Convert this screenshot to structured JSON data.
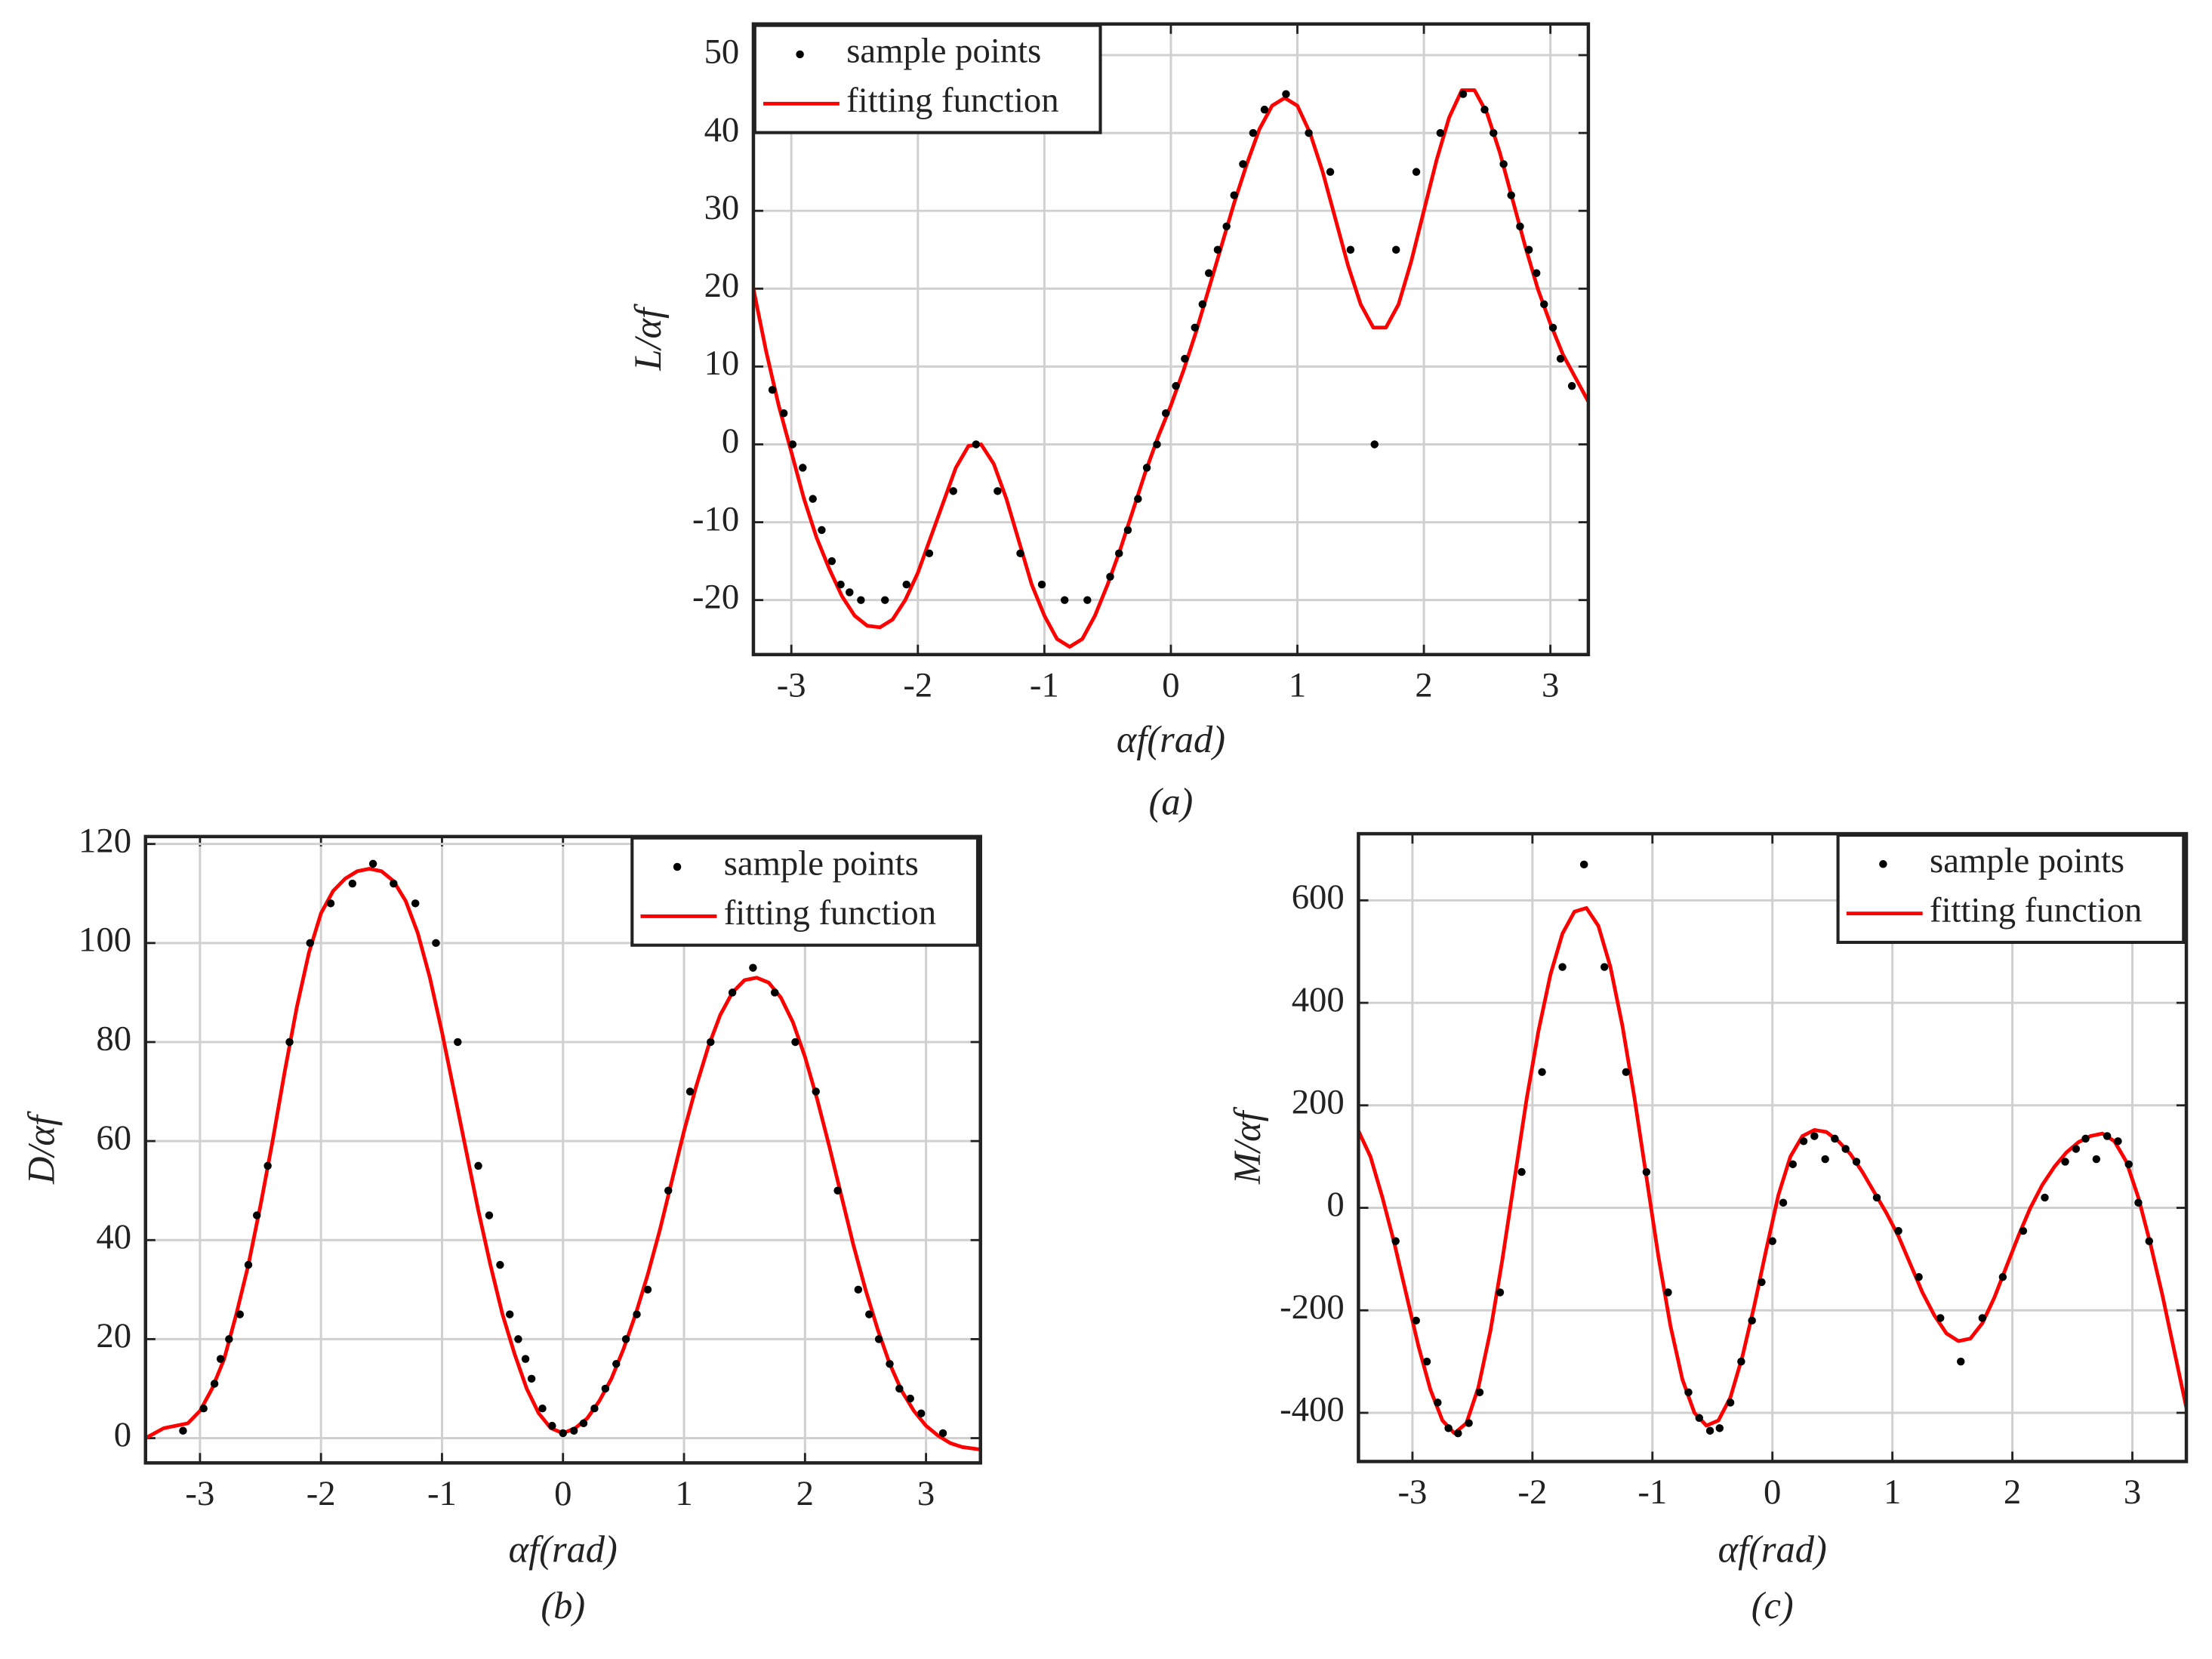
{
  "chart_data": [
    {
      "type": "line",
      "ylabel": "L/αf",
      "xlabel": "αf(rad)",
      "caption": "(a)",
      "legend": "upper left",
      "grid": true,
      "xlim": [
        -3.3,
        3.3
      ],
      "ylim": [
        -27,
        54
      ],
      "xticks": [
        -3,
        -2,
        -1,
        0,
        1,
        2,
        3
      ],
      "yticks": [
        -20,
        -10,
        0,
        10,
        20,
        30,
        40,
        50
      ],
      "series": [
        {
          "name": "sample points",
          "style": "markers",
          "color": "#000000",
          "x": [
            -3.15,
            -3.06,
            -2.99,
            -2.91,
            -2.83,
            -2.76,
            -2.68,
            -2.61,
            -2.54,
            -2.45,
            -2.26,
            -2.09,
            -1.91,
            -1.72,
            -1.54,
            -1.37,
            -1.19,
            -1.02,
            -0.84,
            -0.66,
            -0.48,
            -0.41,
            -0.34,
            -0.26,
            -0.19,
            -0.11,
            -0.04,
            0.04,
            0.11,
            0.19,
            0.25,
            0.3,
            0.37,
            0.44,
            0.5,
            0.57,
            0.65,
            0.74,
            0.91,
            1.09,
            1.26,
            1.42,
            1.61,
            1.78,
            1.94,
            2.13,
            2.31,
            2.48,
            2.55,
            2.63,
            2.69,
            2.76,
            2.83,
            2.89,
            2.95,
            3.02,
            3.08,
            3.17
          ],
          "values": [
            7,
            4,
            0,
            -3,
            -7,
            -11,
            -15,
            -18,
            -19,
            -20,
            -20,
            -18,
            -14,
            -6,
            0,
            -6,
            -14,
            -18,
            -20,
            -20,
            -17,
            -14,
            -11,
            -7,
            -3,
            0,
            4,
            7.5,
            11,
            15,
            18,
            22,
            25,
            28,
            32,
            36,
            40,
            43,
            45,
            40,
            35,
            25,
            0,
            25,
            35,
            40,
            45,
            43,
            40,
            36,
            32,
            28,
            25,
            22,
            18,
            15,
            11,
            7.5
          ]
        },
        {
          "name": "fitting function",
          "style": "line",
          "color": "#ff0000",
          "x": [
            -3.3,
            -3.2,
            -3.1,
            -3,
            -2.9,
            -2.8,
            -2.7,
            -2.6,
            -2.5,
            -2.4,
            -2.3,
            -2.2,
            -2.1,
            -2,
            -1.9,
            -1.8,
            -1.7,
            -1.6,
            -1.5,
            -1.4,
            -1.3,
            -1.2,
            -1.1,
            -1,
            -0.9,
            -0.8,
            -0.7,
            -0.6,
            -0.5,
            -0.4,
            -0.3,
            -0.2,
            -0.1,
            0,
            0.1,
            0.2,
            0.3,
            0.4,
            0.5,
            0.6,
            0.7,
            0.8,
            0.9,
            1,
            1.1,
            1.2,
            1.3,
            1.4,
            1.5,
            1.6,
            1.7,
            1.8,
            1.9,
            2,
            2.1,
            2.2,
            2.3,
            2.4,
            2.5,
            2.6,
            2.7,
            2.8,
            2.9,
            3,
            3.1,
            3.2,
            3.3
          ],
          "values": [
            20,
            12,
            5,
            -1,
            -7,
            -12,
            -16,
            -19.5,
            -22,
            -23.3,
            -23.5,
            -22.5,
            -20,
            -16.5,
            -12,
            -7.5,
            -3,
            -0.2,
            0,
            -2.5,
            -7,
            -12.5,
            -18,
            -22,
            -25,
            -26,
            -25,
            -22,
            -18,
            -13.5,
            -8.5,
            -3.5,
            1,
            5,
            9.5,
            14.5,
            20,
            25.5,
            31,
            36,
            40.5,
            43.5,
            44.5,
            43.5,
            40,
            35,
            29,
            23,
            18,
            15,
            15,
            18,
            23.5,
            30,
            36.5,
            42,
            45.5,
            45.5,
            42.5,
            37.5,
            31.5,
            25.5,
            20,
            15.5,
            11.5,
            8.5,
            5.5
          ]
        }
      ]
    },
    {
      "type": "line",
      "ylabel": "D/αf",
      "xlabel": "αf(rad)",
      "caption": "(b)",
      "legend": "upper right",
      "grid": true,
      "xlim": [
        -3.45,
        3.45
      ],
      "ylim": [
        -5,
        121.5
      ],
      "xticks": [
        -3,
        -2,
        -1,
        0,
        1,
        2,
        3
      ],
      "yticks": [
        0,
        20,
        40,
        60,
        80,
        100,
        120
      ],
      "series": [
        {
          "name": "sample points",
          "style": "markers",
          "color": "#000000",
          "x": [
            -3.14,
            -2.97,
            -2.88,
            -2.83,
            -2.76,
            -2.67,
            -2.6,
            -2.53,
            -2.44,
            -2.26,
            -2.09,
            -1.92,
            -1.74,
            -1.57,
            -1.4,
            -1.22,
            -1.05,
            -0.87,
            -0.7,
            -0.61,
            -0.52,
            -0.44,
            -0.37,
            -0.31,
            -0.26,
            -0.17,
            -0.09,
            0,
            0.09,
            0.17,
            0.26,
            0.35,
            0.44,
            0.52,
            0.61,
            0.7,
            0.87,
            1.05,
            1.22,
            1.4,
            1.57,
            1.75,
            1.92,
            2.09,
            2.27,
            2.44,
            2.53,
            2.61,
            2.7,
            2.78,
            2.87,
            2.96,
            3.14
          ],
          "values": [
            1.5,
            6,
            11,
            16,
            20,
            25,
            35,
            45,
            55,
            80,
            100,
            108,
            112,
            116,
            112,
            108,
            100,
            80,
            55,
            45,
            35,
            25,
            20,
            16,
            12,
            6,
            2.5,
            1,
            1.5,
            3,
            6,
            10,
            15,
            20,
            25,
            30,
            50,
            70,
            80,
            90,
            95,
            90,
            80,
            70,
            50,
            30,
            25,
            20,
            15,
            10,
            8,
            5,
            1
          ]
        },
        {
          "name": "fitting function",
          "style": "line",
          "color": "#ff0000",
          "x": [
            -3.45,
            -3.3,
            -3.2,
            -3.1,
            -3,
            -2.9,
            -2.8,
            -2.7,
            -2.6,
            -2.5,
            -2.4,
            -2.3,
            -2.2,
            -2.1,
            -2,
            -1.9,
            -1.8,
            -1.7,
            -1.6,
            -1.5,
            -1.4,
            -1.3,
            -1.2,
            -1.1,
            -1,
            -0.9,
            -0.8,
            -0.7,
            -0.6,
            -0.5,
            -0.4,
            -0.3,
            -0.2,
            -0.1,
            0,
            0.1,
            0.2,
            0.3,
            0.4,
            0.5,
            0.6,
            0.7,
            0.8,
            0.9,
            1,
            1.1,
            1.2,
            1.3,
            1.4,
            1.5,
            1.6,
            1.7,
            1.8,
            1.9,
            2,
            2.1,
            2.2,
            2.3,
            2.4,
            2.5,
            2.6,
            2.7,
            2.8,
            2.9,
            3,
            3.1,
            3.2,
            3.3,
            3.45
          ],
          "values": [
            0,
            2,
            2.5,
            3,
            5.5,
            10,
            16,
            25,
            35,
            47,
            60,
            74,
            87,
            98,
            106,
            110.5,
            113,
            114.5,
            115,
            114.5,
            112.5,
            108.5,
            102,
            93,
            82,
            70,
            58,
            46,
            35,
            25,
            17,
            10,
            5,
            2,
            1,
            2,
            4,
            7.5,
            12,
            18,
            25,
            33,
            42,
            52,
            62,
            71,
            79,
            85.5,
            90,
            92.5,
            93,
            92,
            89,
            84,
            77,
            68.5,
            59,
            49,
            39,
            30,
            22,
            15,
            9.5,
            5.5,
            2.5,
            0.5,
            -1,
            -1.8,
            -2.3
          ]
        }
      ]
    },
    {
      "type": "line",
      "ylabel": "M/αf",
      "xlabel": "αf(rad)",
      "caption": "(c)",
      "legend": "upper right",
      "grid": true,
      "xlim": [
        -3.45,
        3.45
      ],
      "ylim": [
        -495,
        730
      ],
      "xticks": [
        -3,
        -2,
        -1,
        0,
        1,
        2,
        3
      ],
      "yticks": [
        -400,
        -200,
        0,
        200,
        400,
        600
      ],
      "series": [
        {
          "name": "sample points",
          "style": "markers",
          "color": "#000000",
          "x": [
            -3.14,
            -2.97,
            -2.88,
            -2.79,
            -2.7,
            -2.62,
            -2.53,
            -2.44,
            -2.27,
            -2.09,
            -1.92,
            -1.75,
            -1.57,
            -1.4,
            -1.22,
            -1.05,
            -0.87,
            -0.7,
            -0.61,
            -0.52,
            -0.44,
            -0.35,
            -0.26,
            -0.17,
            -0.09,
            0,
            0.09,
            0.17,
            0.26,
            0.35,
            0.44,
            0.52,
            0.61,
            0.7,
            0.87,
            1.05,
            1.22,
            1.4,
            1.57,
            1.75,
            1.92,
            2.09,
            2.27,
            2.44,
            2.53,
            2.61,
            2.7,
            2.79,
            2.88,
            2.97,
            3.05,
            3.14
          ],
          "values": [
            -65,
            -220,
            -300,
            -380,
            -430,
            -440,
            -420,
            -360,
            -165,
            70,
            265,
            470,
            670,
            470,
            265,
            70,
            -165,
            -360,
            -410,
            -435,
            -430,
            -380,
            -300,
            -220,
            -145,
            -65,
            10,
            85,
            130,
            140,
            95,
            135,
            115,
            90,
            20,
            -45,
            -135,
            -215,
            -300,
            -215,
            -135,
            -45,
            20,
            90,
            115,
            135,
            95,
            140,
            130,
            85,
            10,
            -65
          ]
        },
        {
          "name": "fitting function",
          "style": "line",
          "color": "#ff0000",
          "x": [
            -3.45,
            -3.35,
            -3.25,
            -3.15,
            -3.05,
            -2.95,
            -2.85,
            -2.75,
            -2.65,
            -2.55,
            -2.45,
            -2.35,
            -2.25,
            -2.15,
            -2.05,
            -1.95,
            -1.85,
            -1.75,
            -1.65,
            -1.55,
            -1.45,
            -1.35,
            -1.25,
            -1.15,
            -1.05,
            -0.95,
            -0.85,
            -0.75,
            -0.65,
            -0.55,
            -0.45,
            -0.35,
            -0.25,
            -0.15,
            -0.05,
            0.05,
            0.15,
            0.25,
            0.35,
            0.45,
            0.55,
            0.65,
            0.75,
            0.85,
            0.95,
            1.05,
            1.15,
            1.25,
            1.35,
            1.45,
            1.55,
            1.65,
            1.75,
            1.85,
            1.95,
            2.05,
            2.15,
            2.25,
            2.35,
            2.45,
            2.55,
            2.65,
            2.75,
            2.85,
            2.95,
            3.05,
            3.15,
            3.25,
            3.35,
            3.45
          ],
          "values": [
            150,
            100,
            20,
            -70,
            -170,
            -270,
            -355,
            -415,
            -440,
            -420,
            -350,
            -240,
            -100,
            55,
            210,
            345,
            455,
            535,
            578,
            585,
            550,
            470,
            355,
            215,
            60,
            -95,
            -230,
            -335,
            -400,
            -425,
            -415,
            -370,
            -290,
            -190,
            -80,
            25,
            100,
            140,
            152,
            148,
            130,
            105,
            70,
            30,
            -10,
            -55,
            -110,
            -165,
            -210,
            -245,
            -260,
            -255,
            -225,
            -175,
            -115,
            -55,
            0,
            45,
            80,
            108,
            128,
            140,
            145,
            130,
            90,
            20,
            -70,
            -170,
            -280,
            -390
          ]
        }
      ]
    }
  ]
}
